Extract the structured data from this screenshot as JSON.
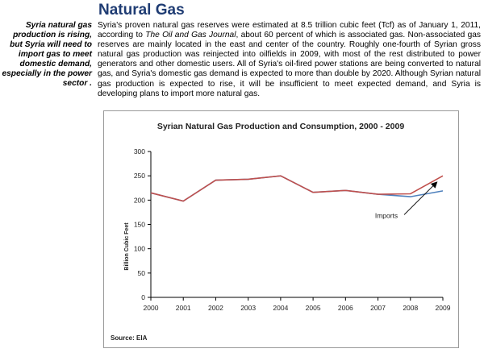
{
  "section": {
    "title": "Natural Gas",
    "sidebar_note": "Syria natural gas production is rising, but Syria will need to import gas to meet domestic demand, especially in the power sector .",
    "body_pre": "Syria's proven natural gas reserves were estimated at 8.5 trillion cubic feet (Tcf) as of January 1, 2011, according to ",
    "body_journal": "The Oil and Gas Journal",
    "body_post": ", about 60 percent of which is associated gas. Non-associated gas reserves are mainly located in the east and center of the country. Roughly one-fourth of Syrian gross natural gas production was reinjected into oilfields in 2009, with most of the rest distributed to power generators and other domestic users. All of Syria's oil-fired power stations are being converted to natural gas, and Syria's domestic gas demand is expected to more than double by 2020. Although Syrian natural gas production is expected to rise, it will be insufficient to meet expected demand, and Syria is developing plans to import more natural gas."
  },
  "chart_data": {
    "type": "line",
    "title": "Syrian Natural Gas Production and Consumption, 2000 - 2009",
    "xlabel": "",
    "ylabel": "Billion Cubic Feet",
    "x": [
      "2000",
      "2001",
      "2002",
      "2003",
      "2004",
      "2005",
      "2006",
      "2007",
      "2008",
      "2009"
    ],
    "ylim": [
      0,
      300
    ],
    "yticks": [
      "0",
      "50",
      "100",
      "150",
      "200",
      "250",
      "300"
    ],
    "grid": false,
    "series": [
      {
        "values": [
          215,
          198,
          241,
          243,
          250,
          216,
          220,
          212,
          213,
          250
        ],
        "color": "#c0504d"
      },
      {
        "values": [
          215,
          198,
          241,
          243,
          250,
          216,
          220,
          212,
          207,
          219
        ],
        "color": "#4f81bd"
      }
    ],
    "annotation": {
      "text": "Imports",
      "arrow_to": {
        "x": "2009",
        "y": 236
      }
    },
    "source": "Source: EIA"
  }
}
